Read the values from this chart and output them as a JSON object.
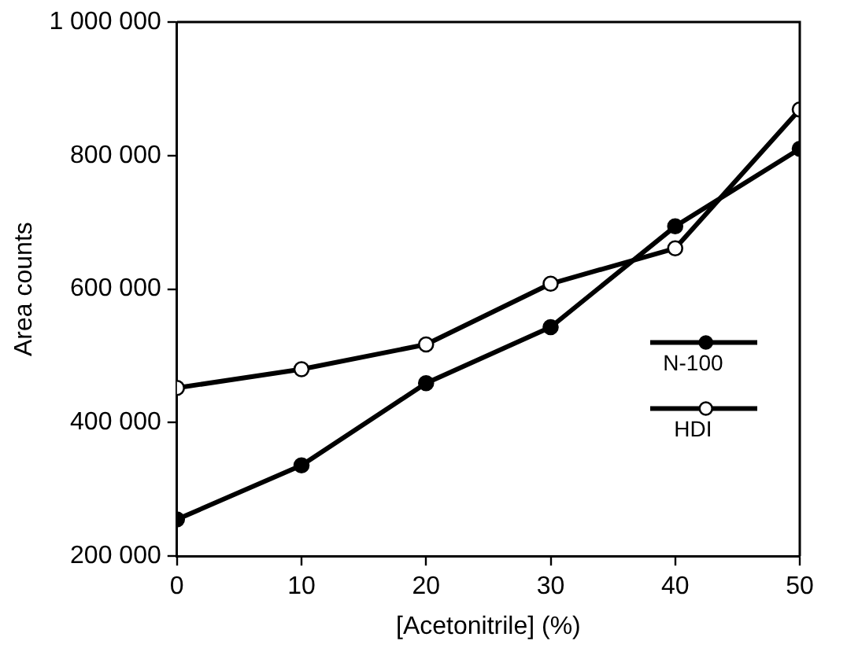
{
  "chart_data": {
    "type": "line",
    "xlabel": "[Acetonitrile] (%)",
    "ylabel": "Area counts",
    "x": [
      0,
      10,
      20,
      30,
      40,
      50
    ],
    "series": [
      {
        "name": "N-100",
        "color": "#000000",
        "values": [
          255000,
          336000,
          459000,
          543000,
          694000,
          810000
        ]
      },
      {
        "name": "HDI",
        "color": "#000000",
        "values": [
          452000,
          480000,
          517000,
          608000,
          661000,
          869000
        ]
      }
    ],
    "xlim": [
      0,
      50
    ],
    "xticks": [
      0,
      10,
      20,
      30,
      40,
      50
    ],
    "ylim": [
      200000,
      1000000
    ],
    "yticks": [
      {
        "value": 200000,
        "label": "200 000"
      },
      {
        "value": 400000,
        "label": "400 000"
      },
      {
        "value": 600000,
        "label": "600 000"
      },
      {
        "value": 800000,
        "label": "800 000"
      },
      {
        "value": 1000000,
        "label": "1 000 000"
      }
    ],
    "grid": false,
    "marker": "circle",
    "legend": "right",
    "line_style": "solid"
  }
}
